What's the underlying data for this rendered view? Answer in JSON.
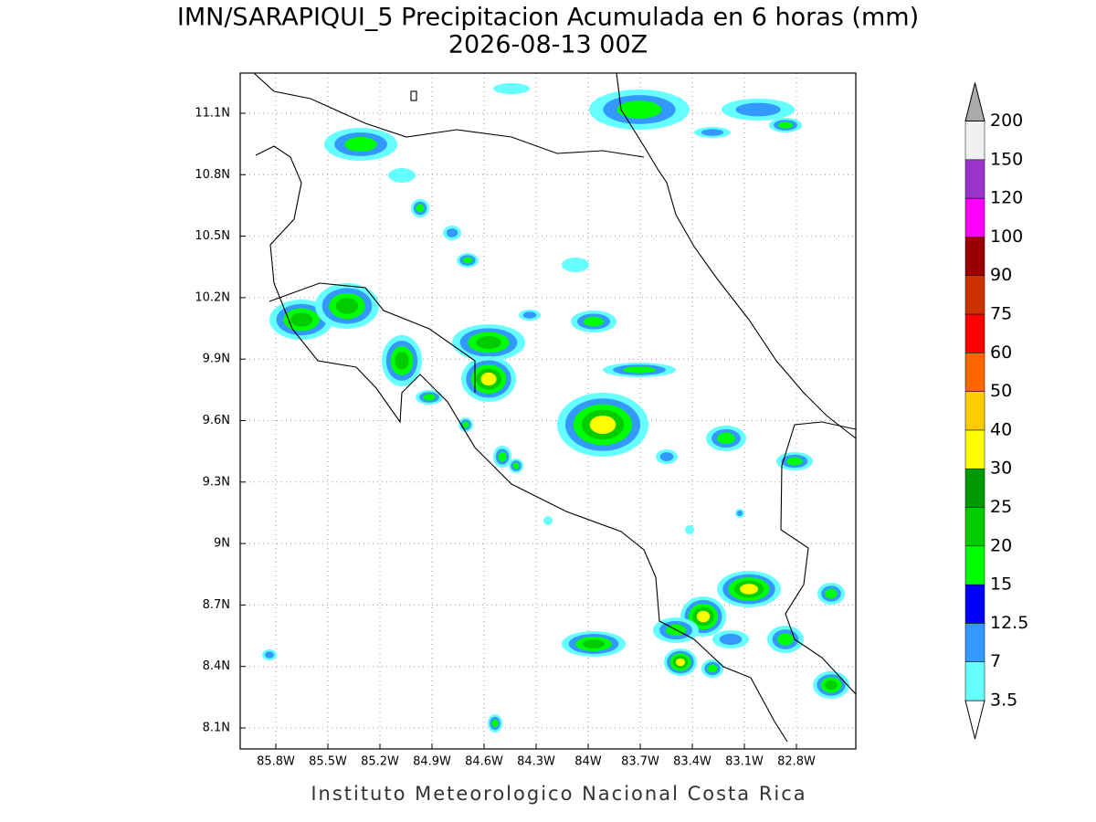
{
  "header": {
    "title": "IMN/SARAPIQUI_5 Precipitacion Acumulada en 6 horas (mm)",
    "subtitle": "2026-08-13 00Z"
  },
  "map": {
    "lon_ticks": [
      "85.8W",
      "85.5W",
      "85.2W",
      "84.9W",
      "84.6W",
      "84.3W",
      "84W",
      "83.7W",
      "83.4W",
      "83.1W",
      "82.8W"
    ],
    "lat_ticks": [
      "11.1N",
      "10.8N",
      "10.5N",
      "10.2N",
      "9.9N",
      "9.6N",
      "9.3N",
      "9N",
      "8.7N",
      "8.4N",
      "8.1N"
    ]
  },
  "colorbar": {
    "levels": [
      "3.5",
      "7",
      "12.5",
      "15",
      "20",
      "25",
      "30",
      "40",
      "50",
      "60",
      "75",
      "90",
      "100",
      "120",
      "150",
      "200"
    ],
    "colors": [
      "#66ffff",
      "#3399ff",
      "#0000ff",
      "#00ff00",
      "#00cc00",
      "#009900",
      "#ffff00",
      "#ffcc00",
      "#ff6600",
      "#ff0000",
      "#cc3300",
      "#990000",
      "#ff00ff",
      "#9933cc",
      "#f0f0f0"
    ],
    "under_color": "#ffffff",
    "over_color": "#aaaaaa"
  },
  "footer": "Instituto Meteorologico Nacional Costa Rica"
}
